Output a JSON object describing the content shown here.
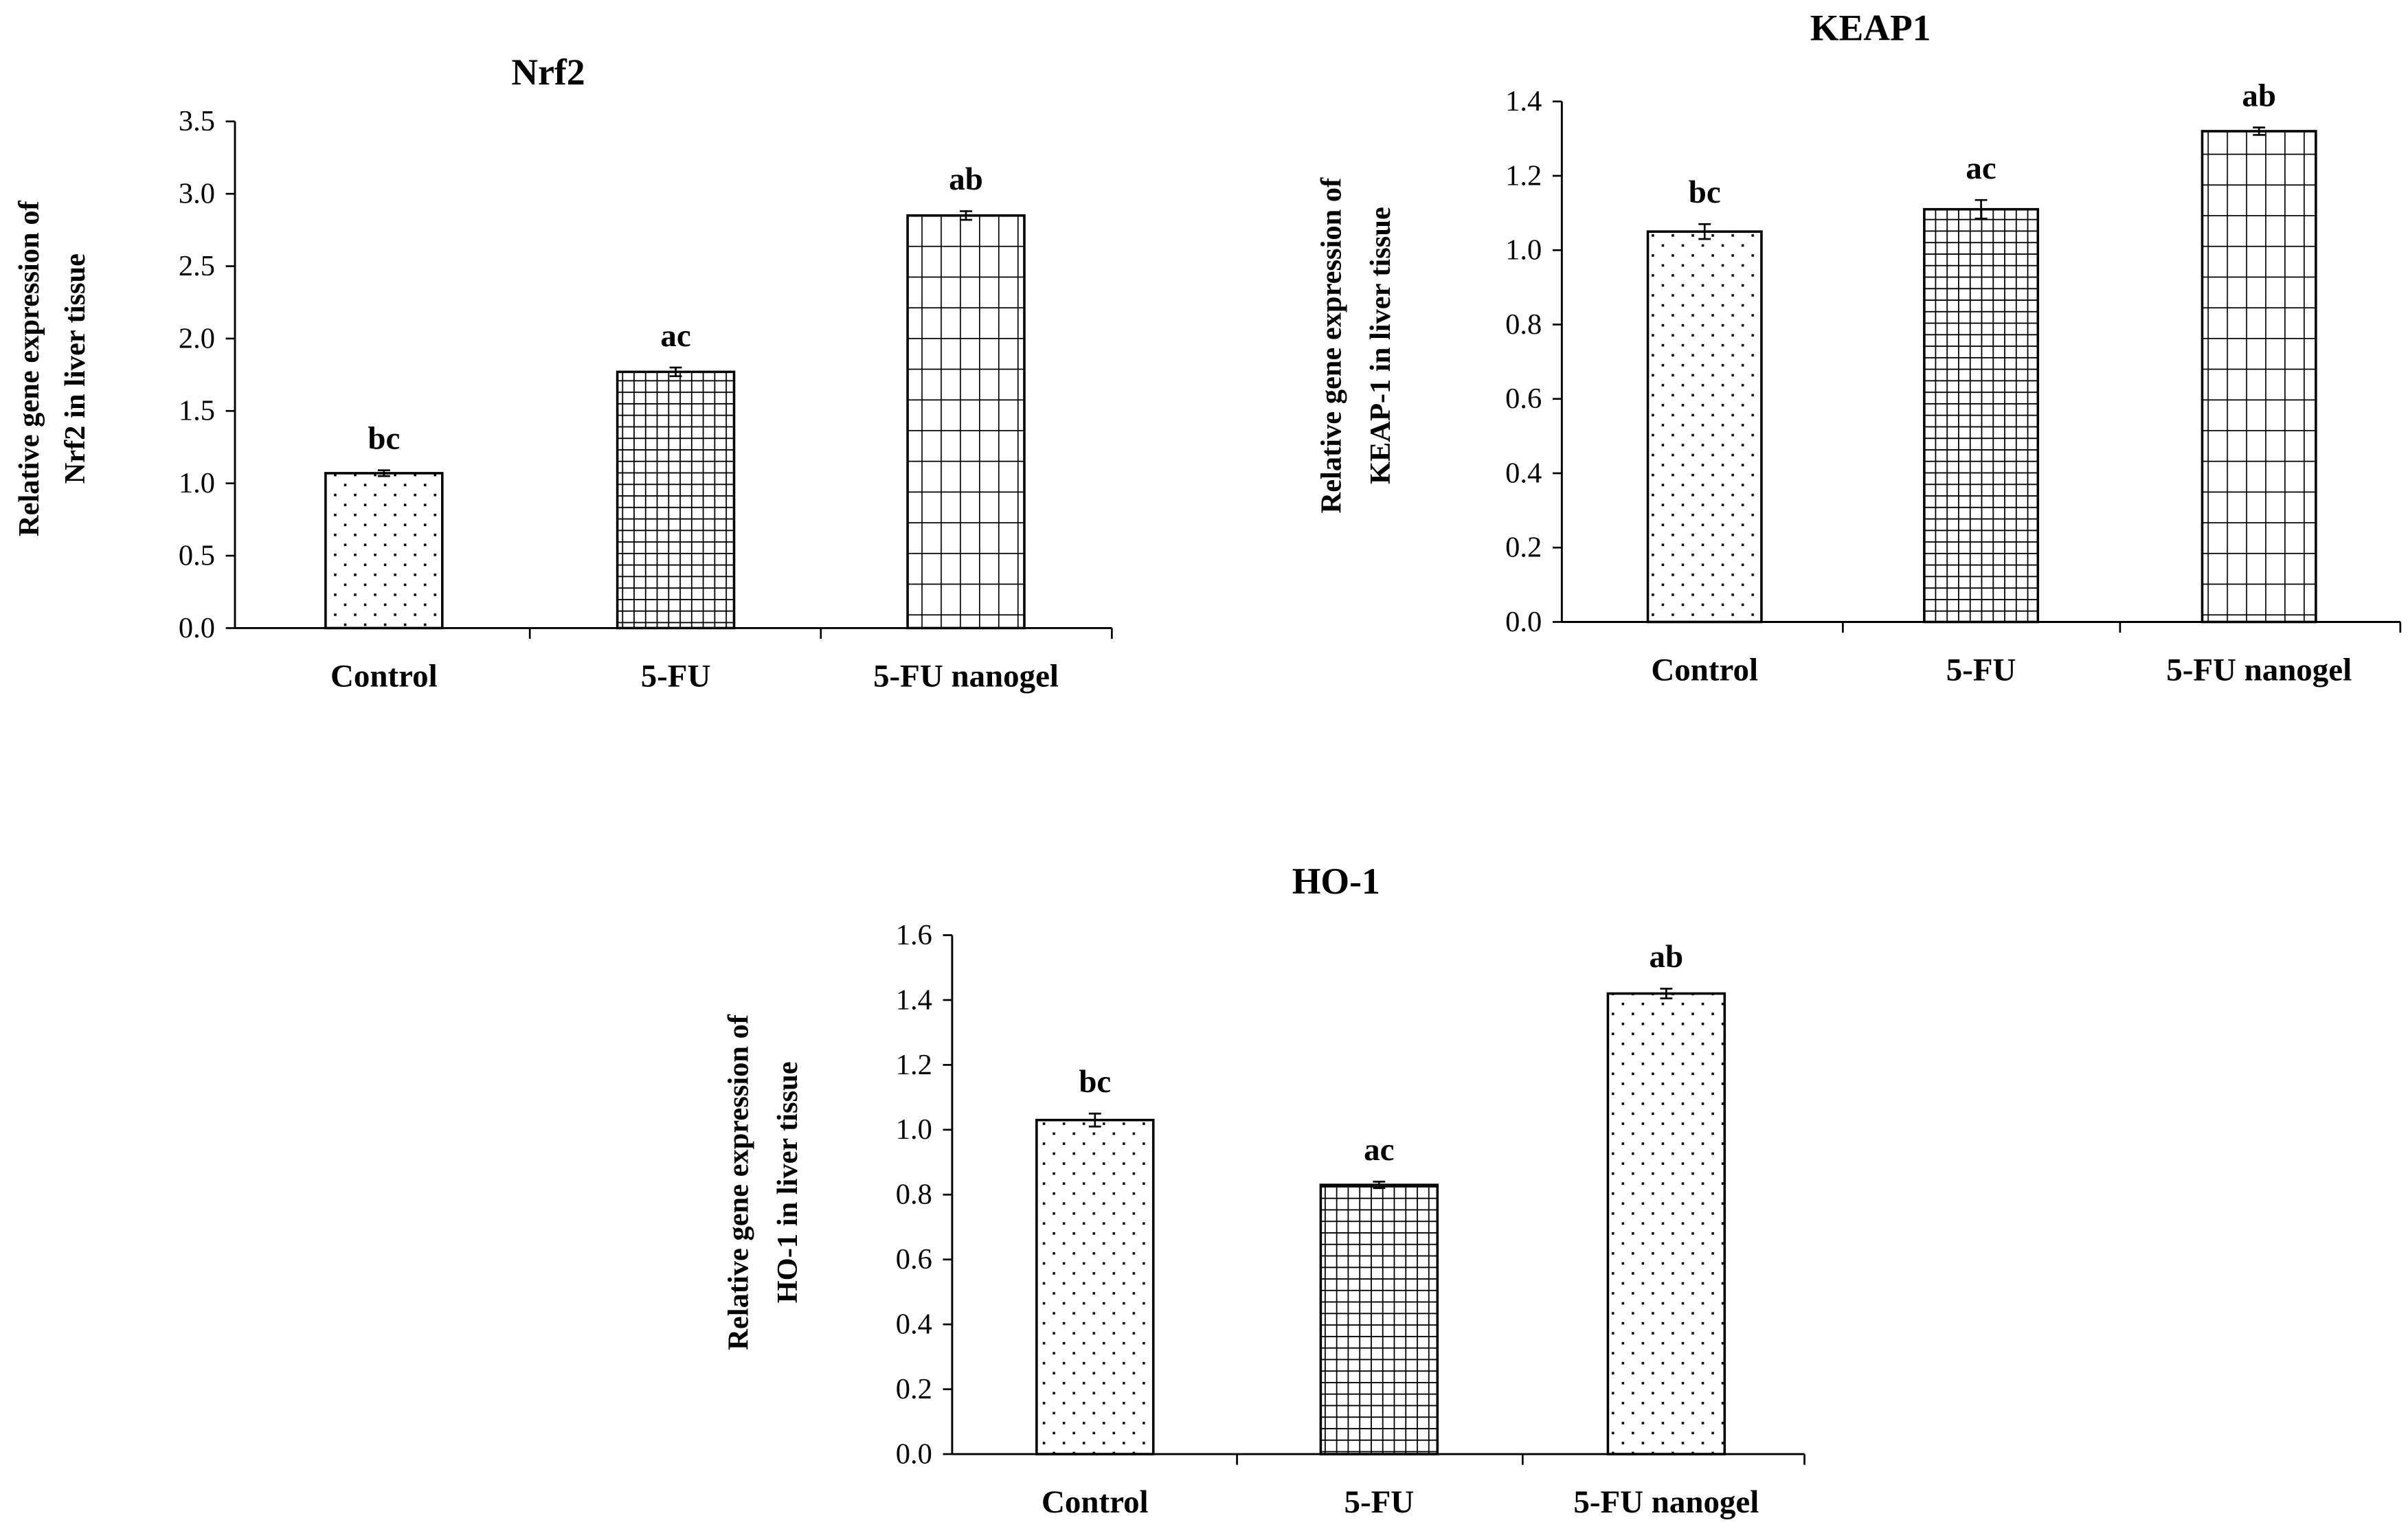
{
  "chart_data": [
    {
      "type": "bar",
      "title": "Nrf2",
      "ylabel": [
        "Relative gene expression of",
        "Nrf2 in liver tissue"
      ],
      "xlabel": "",
      "categories": [
        "Control",
        "5-FU",
        "5-FU nanogel"
      ],
      "values": [
        1.07,
        1.77,
        2.85
      ],
      "errors": [
        0.02,
        0.03,
        0.03
      ],
      "significance": [
        "bc",
        "ac",
        "ab"
      ],
      "patterns": [
        "dots",
        "fine-grid",
        "coarse-grid"
      ],
      "ylim": [
        0,
        3.5
      ],
      "yticks": [
        "0.0",
        "0.5",
        "1.0",
        "1.5",
        "2.0",
        "2.5",
        "3.0",
        "3.5"
      ],
      "grid": false
    },
    {
      "type": "bar",
      "title": "KEAP1",
      "ylabel": [
        "Relative gene expression of",
        "KEAP-1 in liver tissue"
      ],
      "xlabel": "",
      "categories": [
        "Control",
        "5-FU",
        "5-FU nanogel"
      ],
      "values": [
        1.05,
        1.11,
        1.32
      ],
      "errors": [
        0.02,
        0.025,
        0.01
      ],
      "significance": [
        "bc",
        "ac",
        "ab"
      ],
      "patterns": [
        "dots",
        "fine-grid",
        "coarse-grid"
      ],
      "ylim": [
        0,
        1.4
      ],
      "yticks": [
        "0.0",
        "0.2",
        "0.4",
        "0.6",
        "0.8",
        "1.0",
        "1.2",
        "1.4"
      ],
      "grid": false
    },
    {
      "type": "bar",
      "title": "HO-1",
      "ylabel": [
        "Relative gene expression of",
        "HO-1 in liver tissue"
      ],
      "xlabel": "",
      "categories": [
        "Control",
        "5-FU",
        "5-FU nanogel"
      ],
      "values": [
        1.03,
        0.83,
        1.42
      ],
      "errors": [
        0.02,
        0.01,
        0.015
      ],
      "significance": [
        "bc",
        "ac",
        "ab"
      ],
      "patterns": [
        "dots",
        "fine-grid",
        "dots"
      ],
      "ylim": [
        0,
        1.6
      ],
      "yticks": [
        "0.0",
        "0.2",
        "0.4",
        "0.6",
        "0.8",
        "1.0",
        "1.2",
        "1.4",
        "1.6"
      ],
      "grid": false
    }
  ],
  "colors": {
    "ink": "#000000",
    "background": "#ffffff"
  }
}
